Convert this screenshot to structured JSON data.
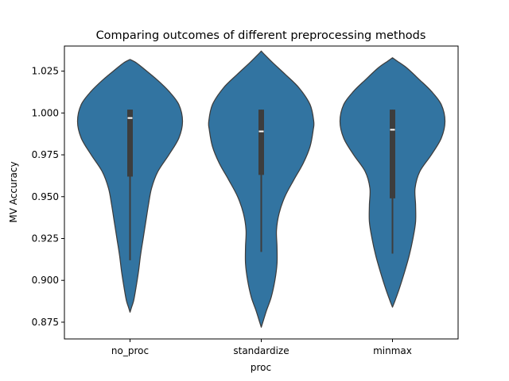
{
  "chart_data": {
    "type": "violin",
    "title": "Comparing outcomes of different preprocessing methods",
    "xlabel": "proc",
    "ylabel": "MV Accuracy",
    "categories": [
      "no_proc",
      "standardize",
      "minmax"
    ],
    "ylim": [
      0.865,
      1.04
    ],
    "yticks": [
      0.875,
      0.9,
      0.925,
      0.95,
      0.975,
      1.0,
      1.025
    ],
    "ytick_labels": [
      "0.875",
      "0.900",
      "0.925",
      "0.950",
      "0.975",
      "1.000",
      "1.025"
    ],
    "fill_color": "#3274a1",
    "edge_color": "#3d3d3d",
    "grid": false,
    "violins": [
      {
        "category": "no_proc",
        "median": 0.997,
        "q1": 0.962,
        "q3": 1.002,
        "whisker_low": 0.912,
        "whisker_high": 1.002,
        "density_min": 0.881,
        "density_max": 1.032,
        "profile": [
          [
            0.881,
            0.0
          ],
          [
            0.884,
            0.03
          ],
          [
            0.888,
            0.07
          ],
          [
            0.895,
            0.11
          ],
          [
            0.905,
            0.16
          ],
          [
            0.915,
            0.2
          ],
          [
            0.925,
            0.25
          ],
          [
            0.935,
            0.3
          ],
          [
            0.945,
            0.35
          ],
          [
            0.955,
            0.41
          ],
          [
            0.965,
            0.53
          ],
          [
            0.975,
            0.74
          ],
          [
            0.985,
            0.93
          ],
          [
            0.995,
            1.0
          ],
          [
            1.005,
            0.93
          ],
          [
            1.013,
            0.74
          ],
          [
            1.02,
            0.51
          ],
          [
            1.026,
            0.28
          ],
          [
            1.03,
            0.12
          ],
          [
            1.032,
            0.0
          ]
        ]
      },
      {
        "category": "standardize",
        "median": 0.989,
        "q1": 0.963,
        "q3": 1.002,
        "whisker_low": 0.917,
        "whisker_high": 1.002,
        "density_min": 0.872,
        "density_max": 1.037,
        "profile": [
          [
            0.872,
            0.0
          ],
          [
            0.876,
            0.04
          ],
          [
            0.882,
            0.1
          ],
          [
            0.89,
            0.19
          ],
          [
            0.9,
            0.26
          ],
          [
            0.91,
            0.3
          ],
          [
            0.92,
            0.3
          ],
          [
            0.93,
            0.29
          ],
          [
            0.94,
            0.34
          ],
          [
            0.95,
            0.45
          ],
          [
            0.96,
            0.62
          ],
          [
            0.97,
            0.8
          ],
          [
            0.98,
            0.93
          ],
          [
            0.99,
            0.99
          ],
          [
            0.995,
            1.0
          ],
          [
            1.005,
            0.93
          ],
          [
            1.015,
            0.72
          ],
          [
            1.023,
            0.46
          ],
          [
            1.03,
            0.22
          ],
          [
            1.035,
            0.06
          ],
          [
            1.037,
            0.0
          ]
        ]
      },
      {
        "category": "minmax",
        "median": 0.99,
        "q1": 0.949,
        "q3": 1.002,
        "whisker_low": 0.916,
        "whisker_high": 1.002,
        "density_min": 0.884,
        "density_max": 1.033,
        "profile": [
          [
            0.884,
            0.0
          ],
          [
            0.888,
            0.05
          ],
          [
            0.895,
            0.13
          ],
          [
            0.905,
            0.23
          ],
          [
            0.915,
            0.32
          ],
          [
            0.925,
            0.39
          ],
          [
            0.935,
            0.44
          ],
          [
            0.945,
            0.44
          ],
          [
            0.955,
            0.43
          ],
          [
            0.965,
            0.52
          ],
          [
            0.975,
            0.74
          ],
          [
            0.985,
            0.93
          ],
          [
            0.995,
            1.0
          ],
          [
            1.005,
            0.93
          ],
          [
            1.013,
            0.74
          ],
          [
            1.02,
            0.51
          ],
          [
            1.027,
            0.27
          ],
          [
            1.031,
            0.09
          ],
          [
            1.033,
            0.0
          ]
        ]
      }
    ]
  }
}
